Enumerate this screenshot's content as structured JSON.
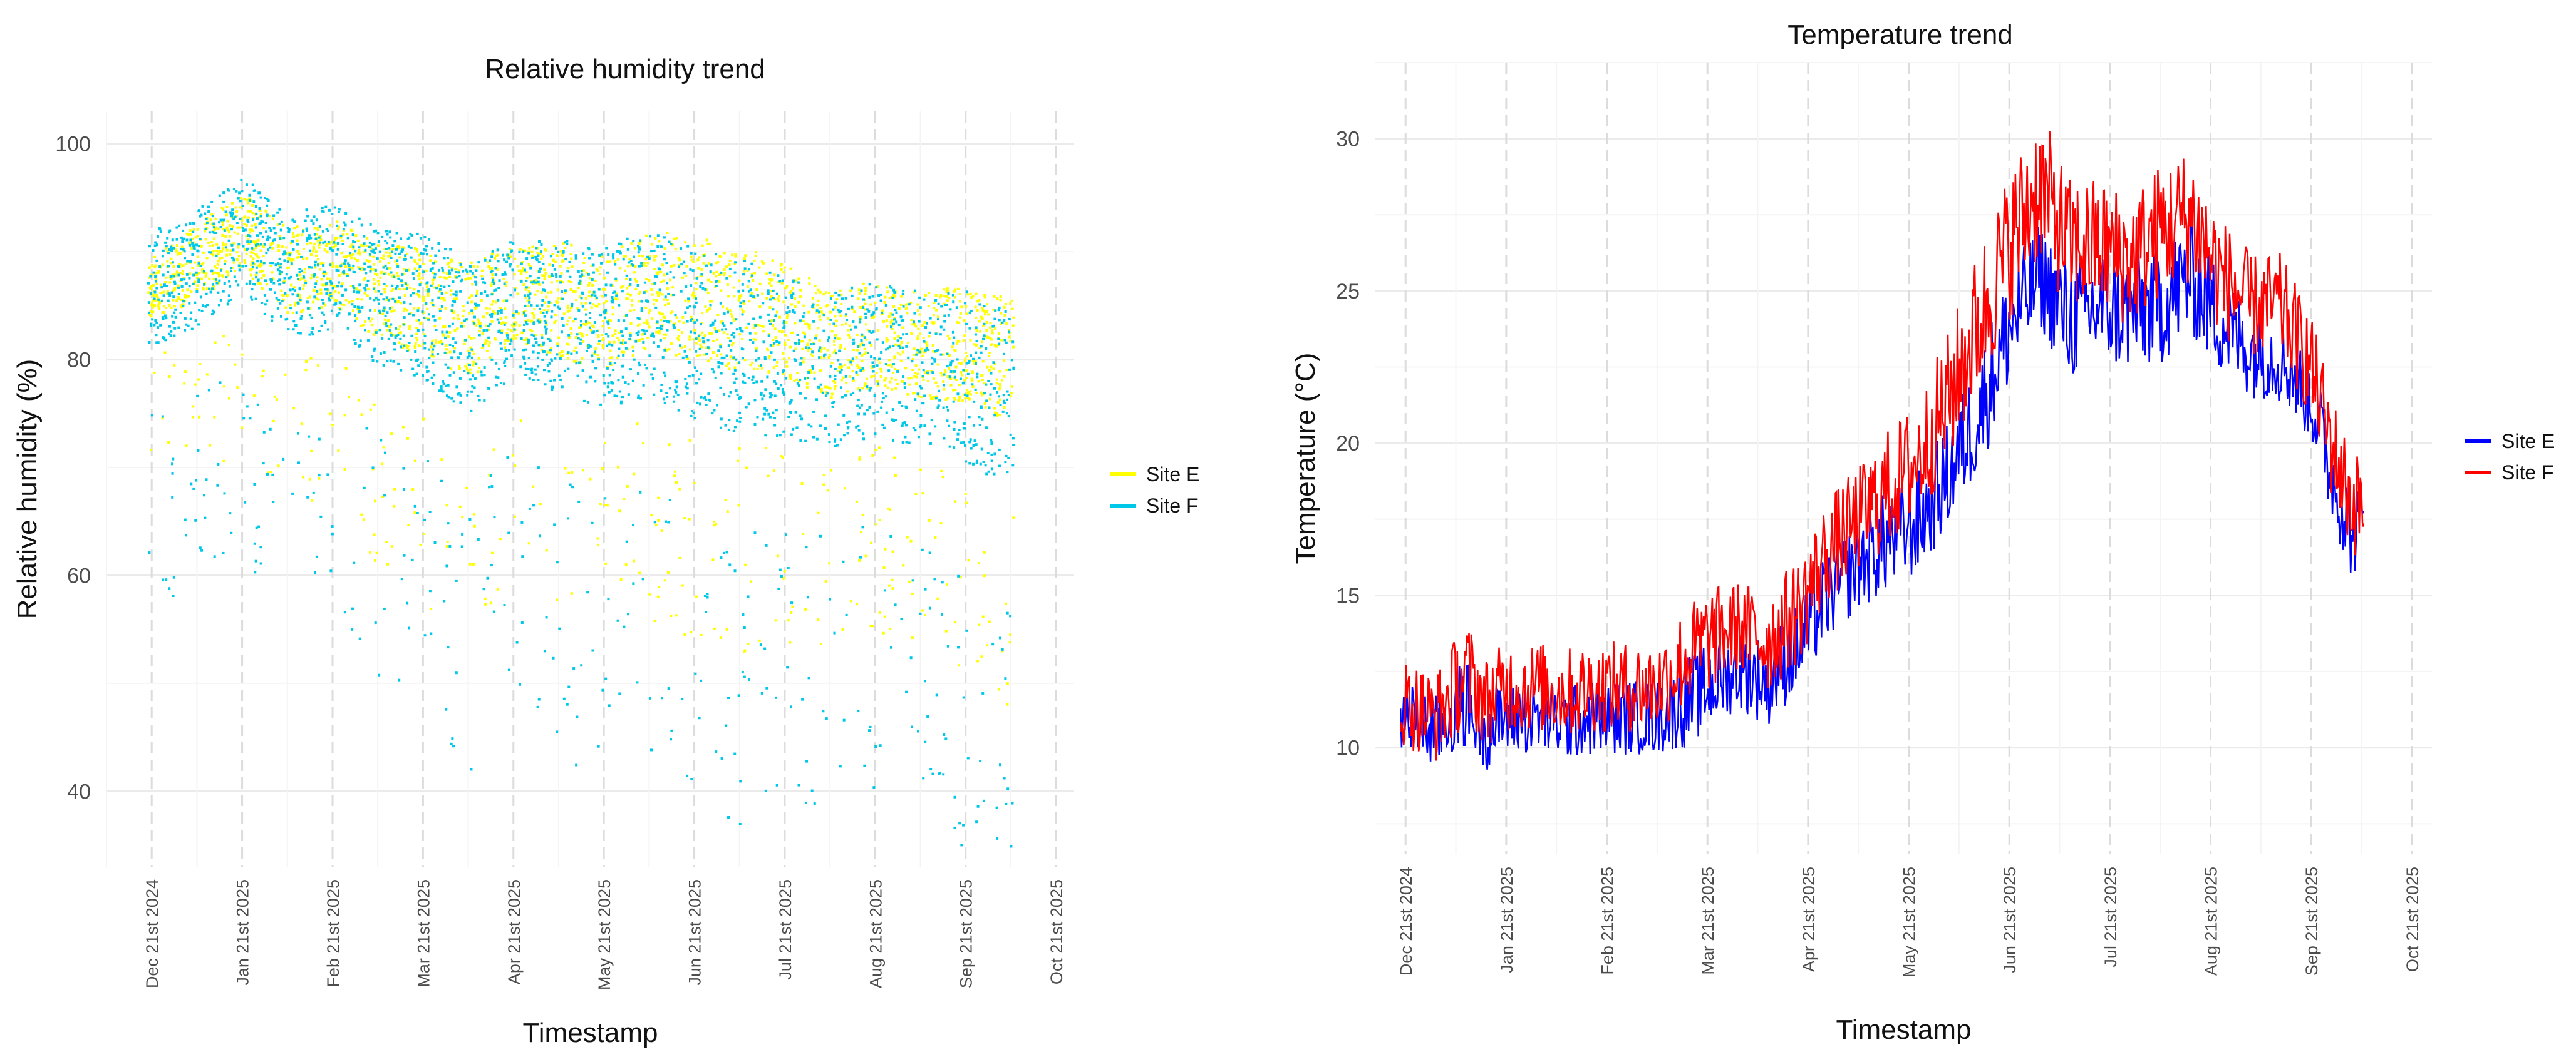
{
  "chart_data": [
    {
      "type": "scatter",
      "title": "Relative humidity trend",
      "xlabel": "Timestamp",
      "ylabel": "Relative humidity (%)",
      "ylim": [
        33,
        103
      ],
      "yticks": [
        40,
        60,
        80,
        100
      ],
      "xlim_months": [
        -0.5,
        10.2
      ],
      "x_ticks": [
        {
          "label": "Dec 21st 2024",
          "m": 0
        },
        {
          "label": "Jan 21st 2025",
          "m": 1
        },
        {
          "label": "Feb 21st 2025",
          "m": 2
        },
        {
          "label": "Mar 21st 2025",
          "m": 3
        },
        {
          "label": "Apr 21st 2025",
          "m": 4
        },
        {
          "label": "May 21st 2025",
          "m": 5
        },
        {
          "label": "Jun 21st 2025",
          "m": 6
        },
        {
          "label": "Jul 21st 2025",
          "m": 7
        },
        {
          "label": "Aug 21st 2025",
          "m": 8
        },
        {
          "label": "Sep 21st 2025",
          "m": 9
        },
        {
          "label": "Oct 21st 2025",
          "m": 10
        }
      ],
      "x_range": [
        -0.05,
        9.52
      ],
      "series": [
        {
          "name": "Site E",
          "color": "#ffff00",
          "x": [
            0,
            0.5,
            1,
            1.5,
            2,
            2.5,
            3,
            3.5,
            4,
            4.5,
            5,
            5.5,
            6,
            6.5,
            7,
            7.5,
            8,
            8.5,
            9,
            9.5
          ],
          "y": [
            86,
            88,
            91,
            87,
            88,
            85,
            84,
            82,
            85,
            84,
            83,
            85,
            84,
            83,
            82,
            80,
            81,
            80,
            80,
            78
          ],
          "spread": [
            6,
            8,
            8,
            9,
            9,
            10,
            11,
            12,
            10,
            12,
            12,
            12,
            13,
            13,
            12,
            11,
            11,
            11,
            12,
            13
          ]
        },
        {
          "name": "Site F",
          "color": "#00c8e8",
          "x": [
            0,
            0.5,
            1,
            1.5,
            2,
            2.5,
            3,
            3.5,
            4,
            4.5,
            5,
            5.5,
            6,
            6.5,
            7,
            7.5,
            8,
            8.5,
            9,
            9.5
          ],
          "y": [
            85,
            87,
            90,
            86,
            87,
            84,
            83,
            80,
            83,
            82,
            81,
            82,
            80,
            79,
            78,
            77,
            78,
            77,
            76,
            74
          ],
          "spread": [
            12,
            12,
            12,
            13,
            13,
            14,
            15,
            16,
            14,
            16,
            17,
            17,
            18,
            18,
            17,
            16,
            16,
            16,
            18,
            18
          ]
        }
      ],
      "legend": {
        "position": "right"
      }
    },
    {
      "type": "line",
      "title": "Temperature trend",
      "xlabel": "Timestamp",
      "ylabel": "Temperature (°C)",
      "ylim": [
        6.5,
        32.5
      ],
      "yticks": [
        10,
        15,
        20,
        25,
        30
      ],
      "xlim_months": [
        -0.3,
        10.2
      ],
      "x_ticks": [
        {
          "label": "Dec 21st 2024",
          "m": 0
        },
        {
          "label": "Jan 21st 2025",
          "m": 1
        },
        {
          "label": "Feb 21st 2025",
          "m": 2
        },
        {
          "label": "Mar 21st 2025",
          "m": 3
        },
        {
          "label": "Apr 21st 2025",
          "m": 4
        },
        {
          "label": "May 21st 2025",
          "m": 5
        },
        {
          "label": "Jun 21st 2025",
          "m": 6
        },
        {
          "label": "Jul 21st 2025",
          "m": 7
        },
        {
          "label": "Aug 21st 2025",
          "m": 8
        },
        {
          "label": "Sep 21st 2025",
          "m": 9
        },
        {
          "label": "Oct 21st 2025",
          "m": 10
        }
      ],
      "x_range": [
        -0.05,
        9.52
      ],
      "series": [
        {
          "name": "Site E",
          "color": "#0000ff",
          "x": [
            0,
            0.3,
            0.6,
            0.8,
            1,
            1.3,
            1.6,
            1.9,
            2.2,
            2.5,
            2.8,
            3,
            3.3,
            3.6,
            3.9,
            4.2,
            4.5,
            4.8,
            5.1,
            5.4,
            5.7,
            6,
            6.3,
            6.6,
            6.9,
            7.2,
            7.5,
            7.8,
            8.1,
            8.4,
            8.7,
            9,
            9.2,
            9.4,
            9.5
          ],
          "y": [
            11,
            10.5,
            11.5,
            10.5,
            11,
            11,
            10.8,
            11,
            11,
            11,
            11.5,
            12,
            12.5,
            12.2,
            13.3,
            15,
            16,
            16.8,
            17.4,
            19,
            21,
            23.8,
            25.5,
            24,
            24.5,
            24.3,
            24.5,
            25.5,
            24,
            23,
            22.8,
            21.5,
            19,
            17,
            17.5
          ],
          "spread": [
            2.5,
            2.5,
            3,
            2.5,
            2.5,
            2.5,
            2.5,
            2.5,
            2.5,
            2.5,
            3,
            3,
            2.5,
            3,
            3,
            3,
            3,
            3.5,
            3.5,
            3.5,
            4,
            4,
            3.5,
            4,
            4,
            4,
            4,
            4,
            3.5,
            3,
            3,
            3,
            3,
            3,
            3
          ]
        },
        {
          "name": "Site F",
          "color": "#ff0000",
          "x": [
            0,
            0.3,
            0.6,
            0.8,
            1,
            1.3,
            1.6,
            1.9,
            2.2,
            2.5,
            2.8,
            3,
            3.3,
            3.6,
            3.9,
            4.2,
            4.5,
            4.8,
            5.1,
            5.4,
            5.7,
            6,
            6.3,
            6.6,
            6.9,
            7.2,
            7.5,
            7.8,
            8.1,
            8.4,
            8.7,
            9,
            9.2,
            9.4,
            9.5
          ],
          "y": [
            11.5,
            11,
            12.5,
            11.5,
            12,
            12,
            11.8,
            12,
            12,
            12,
            13,
            13.5,
            14,
            13.5,
            14.5,
            16.5,
            17.5,
            18.5,
            19.5,
            21.5,
            24,
            26.5,
            28.5,
            26.5,
            26.5,
            26,
            27,
            27.5,
            25.5,
            24.5,
            24.5,
            22.5,
            20,
            18,
            18
          ],
          "spread": [
            3,
            3,
            3.5,
            3,
            3,
            3,
            3,
            3,
            3,
            3,
            3.5,
            3.5,
            3,
            3.5,
            3.5,
            3.5,
            3.5,
            4,
            4,
            4.5,
            5,
            5,
            5,
            4.5,
            4.5,
            4.5,
            4.5,
            4.5,
            4,
            3.5,
            3.5,
            3.5,
            3.5,
            3.5,
            3.5
          ]
        }
      ],
      "legend": {
        "position": "right"
      }
    }
  ]
}
